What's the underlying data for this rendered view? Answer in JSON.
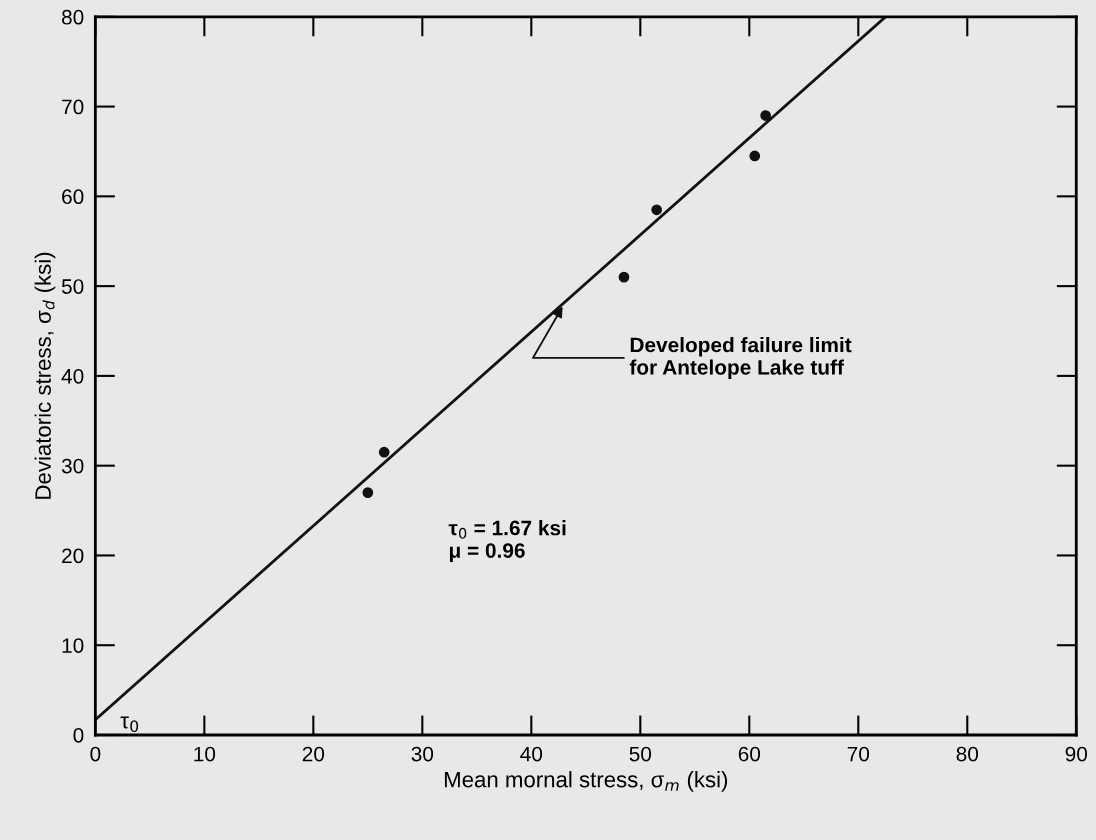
{
  "chart_data": {
    "type": "scatter",
    "xlabel": "Mean mornal stress, σ$_{m}$ (ksi)",
    "ylabel": "Deviatoric stress, σ$_{d}$ (ksi)",
    "xlim": [
      0,
      90
    ],
    "ylim": [
      0,
      80
    ],
    "xticks": [
      0,
      10,
      20,
      30,
      40,
      50,
      60,
      70,
      80,
      90
    ],
    "yticks": [
      0,
      10,
      20,
      30,
      40,
      50,
      60,
      70,
      80
    ],
    "grid": false,
    "legend": false,
    "marker": "circle",
    "series": [
      {
        "color": "#111111",
        "x": [
          25,
          26.5,
          48.5,
          51.5,
          60.5,
          61.5
        ],
        "values": [
          27,
          31.5,
          51,
          58.5,
          64.5,
          69
        ]
      },
      {
        "type": "line",
        "color": "#111111",
        "line_style": "solid",
        "marker": "none",
        "x": [
          0,
          72.5
        ],
        "values": [
          1.7,
          80
        ]
      }
    ],
    "annotations": [
      {
        "text": "Developed failure limit\nfor Antelope Lake tuff",
        "x": 43,
        "y": 48
      },
      {
        "text": "τ$_{0}$",
        "x": 0.5,
        "y": 1.7
      },
      "τ$_{0}$ = 1.67 ksi\nμ = 0.96"
    ]
  }
}
